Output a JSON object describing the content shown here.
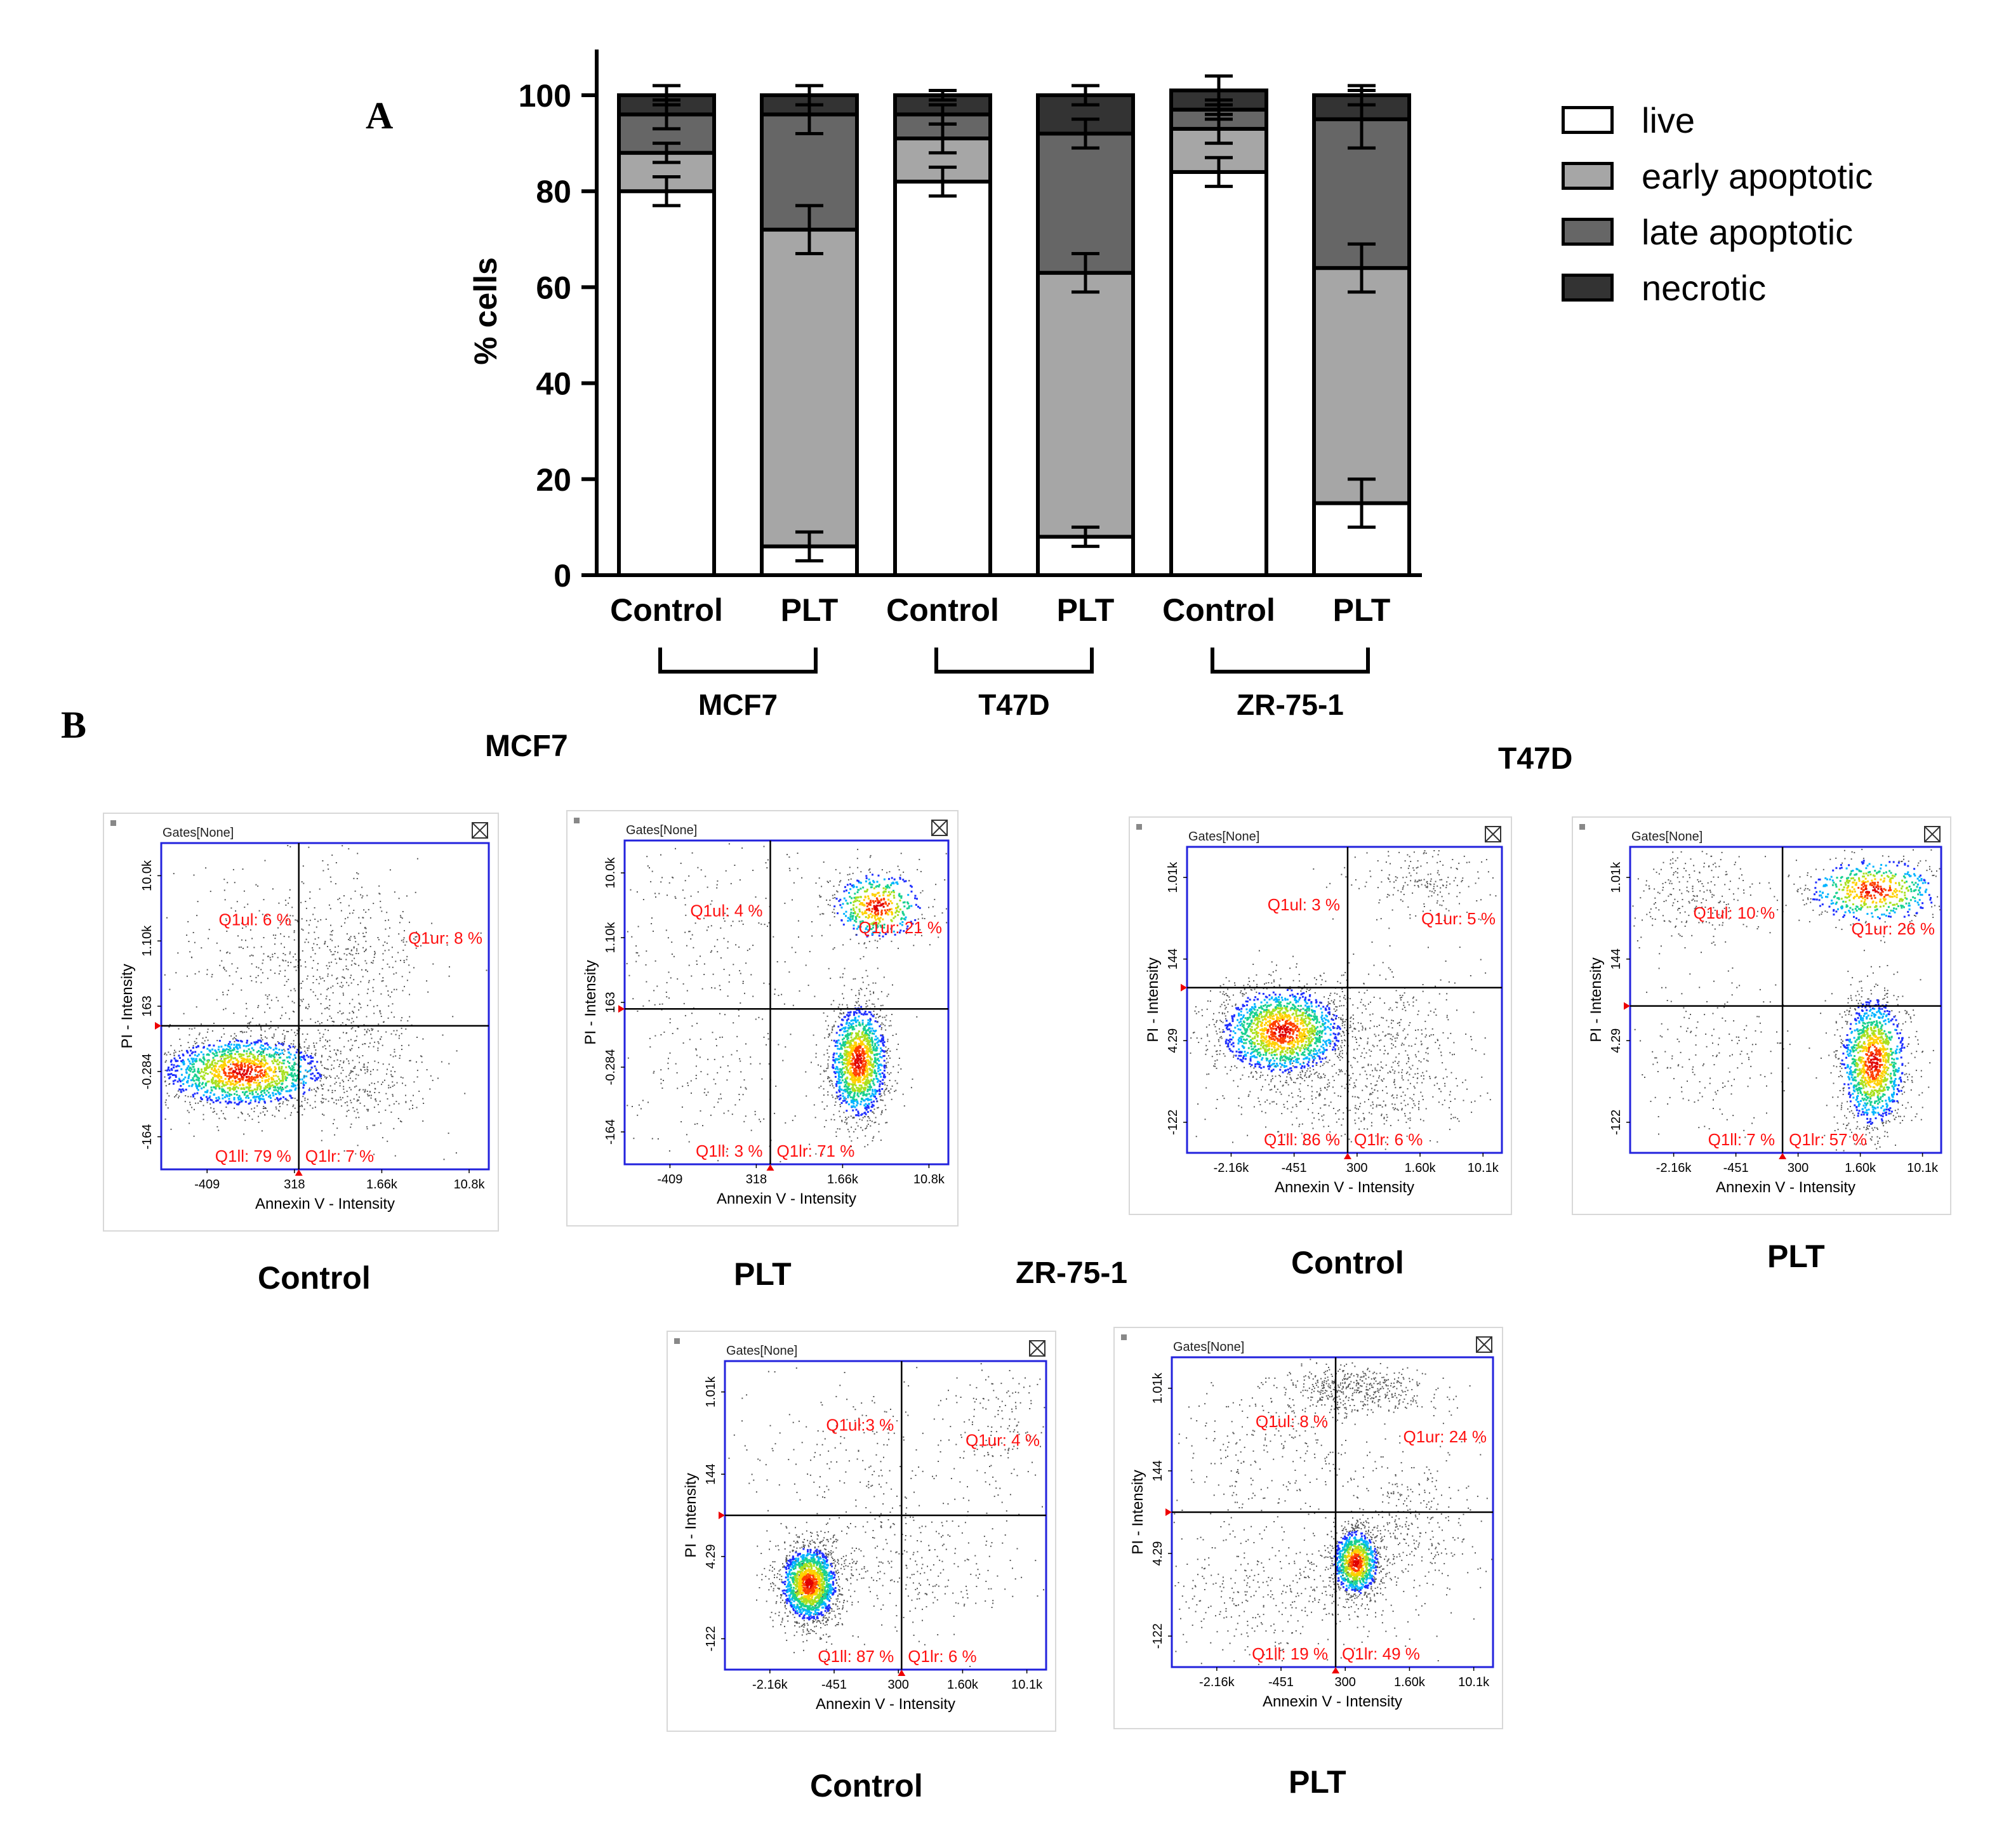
{
  "panel_labels": {
    "a": "A",
    "b": "B"
  },
  "chart_data": {
    "type": "bar",
    "stacked": true,
    "ylabel": "% cells",
    "ylim": [
      0,
      110
    ],
    "yticks": [
      0,
      20,
      40,
      60,
      80,
      100
    ],
    "categories": [
      "Control",
      "PLT",
      "Control",
      "PLT",
      "Control",
      "PLT"
    ],
    "groups": [
      {
        "name": "MCF7",
        "categories": [
          0,
          1
        ]
      },
      {
        "name": "T47D",
        "categories": [
          2,
          3
        ]
      },
      {
        "name": "ZR-75-1",
        "categories": [
          4,
          5
        ]
      }
    ],
    "legend_position": "right",
    "series": [
      {
        "name": "live",
        "color": "#ffffff",
        "values": [
          80,
          6,
          82,
          8,
          84,
          15
        ],
        "errors": [
          3,
          3,
          3,
          2,
          3,
          5
        ]
      },
      {
        "name": "early apoptotic",
        "color": "#a6a6a6",
        "values": [
          8,
          66,
          9,
          55,
          9,
          49
        ],
        "errors": [
          2,
          5,
          3,
          4,
          3,
          5
        ]
      },
      {
        "name": "late apoptotic",
        "color": "#666666",
        "values": [
          8,
          24,
          5,
          29,
          4,
          31
        ],
        "errors": [
          3,
          4,
          2,
          3,
          2,
          6
        ]
      },
      {
        "name": "necrotic",
        "color": "#333333",
        "values": [
          4,
          4,
          4,
          8,
          4,
          5
        ],
        "errors": [
          2,
          2,
          1,
          2,
          3,
          2
        ]
      }
    ]
  },
  "section_b": {
    "mcf7_title": "MCF7",
    "t47d_title": "T47D",
    "zr_title": "ZR-75-1"
  },
  "flow_plots": [
    {
      "cell_line": "MCF7",
      "condition": "Control",
      "gates": "Gates[None]",
      "xlabel": "Annexin V - Intensity",
      "ylabel": "PI - Intensity",
      "xticks": [
        "-409",
        "318",
        "1.66k",
        "10.8k"
      ],
      "yticks": [
        "10.0k",
        "1.10k",
        "163",
        "-0.284",
        "-164"
      ],
      "quadrants": {
        "ul": "Q1ul: 6 %",
        "ur": "Q1ur: 8 %",
        "ll": "Q1ll: 79 %",
        "lr": "Q1lr: 7 %"
      },
      "gate_x": 0.42,
      "gate_y": 0.56,
      "clusters": [
        {
          "cx": 0.25,
          "cy": 0.7,
          "sx": 0.14,
          "sy": 0.06,
          "n": 1600,
          "hot": true
        },
        {
          "cx": 0.58,
          "cy": 0.38,
          "sx": 0.12,
          "sy": 0.15,
          "n": 450,
          "hot": false
        },
        {
          "cx": 0.62,
          "cy": 0.72,
          "sx": 0.12,
          "sy": 0.1,
          "n": 300,
          "hot": false
        },
        {
          "cx": 0.3,
          "cy": 0.35,
          "sx": 0.15,
          "sy": 0.15,
          "n": 250,
          "hot": false
        }
      ]
    },
    {
      "cell_line": "MCF7",
      "condition": "PLT",
      "gates": "Gates[None]",
      "xlabel": "Annexin V - Intensity",
      "ylabel": "PI - Intensity",
      "xticks": [
        "-409",
        "318",
        "1.66k",
        "10.8k"
      ],
      "yticks": [
        "10.0k",
        "1.10k",
        "163",
        "-0.284",
        "-164"
      ],
      "quadrants": {
        "ul": "Q1ul: 4 %",
        "ur": "Q1ur: 21 %",
        "ll": "Q1ll: 3 %",
        "lr": "Q1lr: 71 %"
      },
      "gate_x": 0.45,
      "gate_y": 0.52,
      "clusters": [
        {
          "cx": 0.72,
          "cy": 0.68,
          "sx": 0.05,
          "sy": 0.1,
          "n": 1400,
          "hot": true
        },
        {
          "cx": 0.78,
          "cy": 0.2,
          "sx": 0.08,
          "sy": 0.06,
          "n": 500,
          "hot": true
        },
        {
          "cx": 0.25,
          "cy": 0.3,
          "sx": 0.18,
          "sy": 0.2,
          "n": 250,
          "hot": false
        },
        {
          "cx": 0.25,
          "cy": 0.75,
          "sx": 0.15,
          "sy": 0.15,
          "n": 150,
          "hot": false
        }
      ]
    },
    {
      "cell_line": "T47D",
      "condition": "Control",
      "gates": "Gates[None]",
      "xlabel": "Annexin V - Intensity",
      "ylabel": "PI - Intensity",
      "xticks": [
        "-2.16k",
        "-451",
        "300",
        "1.60k",
        "10.1k"
      ],
      "yticks": [
        "1.01k",
        "144",
        "4.29",
        "-122"
      ],
      "quadrants": {
        "ul": "Q1ul: 3 %",
        "ur": "Q1ur: 5 %",
        "ll": "Q1ll: 86 %",
        "lr": "Q1lr: 6 %"
      },
      "gate_x": 0.51,
      "gate_y": 0.46,
      "clusters": [
        {
          "cx": 0.3,
          "cy": 0.6,
          "sx": 0.11,
          "sy": 0.08,
          "n": 1700,
          "hot": true
        },
        {
          "cx": 0.65,
          "cy": 0.65,
          "sx": 0.12,
          "sy": 0.15,
          "n": 450,
          "hot": false
        },
        {
          "cx": 0.75,
          "cy": 0.1,
          "sx": 0.1,
          "sy": 0.06,
          "n": 200,
          "hot": false
        },
        {
          "cx": 0.45,
          "cy": 0.82,
          "sx": 0.2,
          "sy": 0.08,
          "n": 250,
          "hot": false
        }
      ]
    },
    {
      "cell_line": "T47D",
      "condition": "PLT",
      "gates": "Gates[None]",
      "xlabel": "Annexin V - Intensity",
      "ylabel": "PI - Intensity",
      "xticks": [
        "-2.16k",
        "-451",
        "300",
        "1.60k",
        "10.1k"
      ],
      "yticks": [
        "1.01k",
        "144",
        "4.29",
        "-122"
      ],
      "quadrants": {
        "ul": "Q1ul: 10 %",
        "ur": "Q1ur: 26 %",
        "ll": "Q1ll: 7 %",
        "lr": "Q1lr: 57 %"
      },
      "gate_x": 0.49,
      "gate_y": 0.52,
      "clusters": [
        {
          "cx": 0.78,
          "cy": 0.7,
          "sx": 0.06,
          "sy": 0.12,
          "n": 1300,
          "hot": true
        },
        {
          "cx": 0.78,
          "cy": 0.14,
          "sx": 0.12,
          "sy": 0.06,
          "n": 600,
          "hot": true
        },
        {
          "cx": 0.2,
          "cy": 0.15,
          "sx": 0.1,
          "sy": 0.08,
          "n": 250,
          "hot": false
        },
        {
          "cx": 0.25,
          "cy": 0.65,
          "sx": 0.15,
          "sy": 0.15,
          "n": 200,
          "hot": false
        }
      ]
    },
    {
      "cell_line": "ZR-75-1",
      "condition": "Control",
      "gates": "Gates[None]",
      "xlabel": "Annexin V - Intensity",
      "ylabel": "PI - Intensity",
      "xticks": [
        "-2.16k",
        "-451",
        "300",
        "1.60k",
        "10.1k"
      ],
      "yticks": [
        "1.01k",
        "144",
        "4.29",
        "-122"
      ],
      "quadrants": {
        "ul": "Q1ul:3 %",
        "ur": "Q1ur: 4 %",
        "ll": "Q1ll: 87 %",
        "lr": "Q1lr: 6 %"
      },
      "gate_x": 0.55,
      "gate_y": 0.5,
      "clusters": [
        {
          "cx": 0.26,
          "cy": 0.72,
          "sx": 0.05,
          "sy": 0.07,
          "n": 1600,
          "hot": true
        },
        {
          "cx": 0.55,
          "cy": 0.65,
          "sx": 0.18,
          "sy": 0.12,
          "n": 350,
          "hot": false
        },
        {
          "cx": 0.4,
          "cy": 0.3,
          "sx": 0.2,
          "sy": 0.15,
          "n": 200,
          "hot": false
        },
        {
          "cx": 0.85,
          "cy": 0.2,
          "sx": 0.08,
          "sy": 0.1,
          "n": 150,
          "hot": false
        }
      ]
    },
    {
      "cell_line": "ZR-75-1",
      "condition": "PLT",
      "gates": "Gates[None]",
      "xlabel": "Annexin V - Intensity",
      "ylabel": "PI - Intensity",
      "xticks": [
        "-2.16k",
        "-451",
        "300",
        "1.60k",
        "10.1k"
      ],
      "yticks": [
        "1.01k",
        "144",
        "4.29",
        "-122"
      ],
      "quadrants": {
        "ul": "Q1ul: 8 %",
        "ur": "Q1ur: 24 %",
        "ll": "Q1ll: 19 %",
        "lr": "Q1lr: 49 %"
      },
      "gate_x": 0.51,
      "gate_y": 0.5,
      "clusters": [
        {
          "cx": 0.57,
          "cy": 0.66,
          "sx": 0.04,
          "sy": 0.06,
          "n": 1000,
          "hot": true
        },
        {
          "cx": 0.57,
          "cy": 0.1,
          "sx": 0.12,
          "sy": 0.04,
          "n": 500,
          "hot": false
        },
        {
          "cx": 0.3,
          "cy": 0.75,
          "sx": 0.2,
          "sy": 0.12,
          "n": 450,
          "hot": false
        },
        {
          "cx": 0.75,
          "cy": 0.55,
          "sx": 0.12,
          "sy": 0.15,
          "n": 350,
          "hot": false
        },
        {
          "cx": 0.3,
          "cy": 0.3,
          "sx": 0.15,
          "sy": 0.12,
          "n": 250,
          "hot": false
        }
      ]
    }
  ]
}
